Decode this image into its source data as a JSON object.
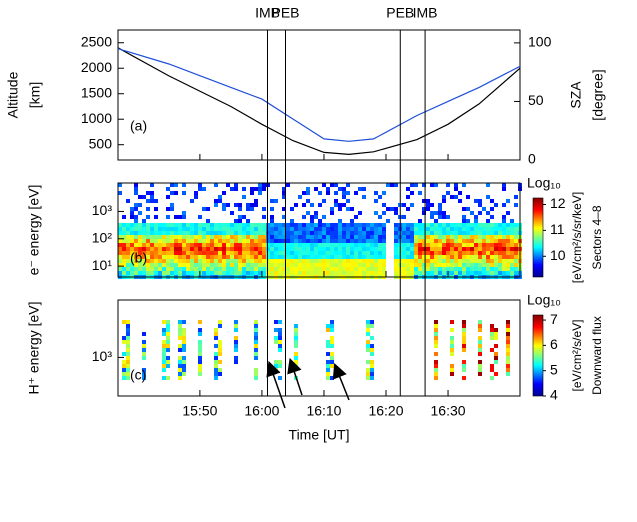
{
  "boundaries": [
    {
      "label": "IMB",
      "x": 960.9
    },
    {
      "label": "PEB",
      "x": 963.8
    },
    {
      "label": "PEB",
      "x": 982.3
    },
    {
      "label": "IMB",
      "x": 986.3
    }
  ],
  "chart_data": [
    {
      "type": "line",
      "panel_label": "(a)",
      "ylabel": [
        "Altitude",
        "[km]"
      ],
      "y2label": [
        "SZA",
        "[degree]"
      ],
      "y2color": "#1f4fd8",
      "x": [
        936.8,
        945,
        955,
        960,
        965,
        970,
        974,
        978,
        985,
        990,
        995,
        1001.6
      ],
      "series": [
        {
          "color": "#000000",
          "values": [
            2400,
            1850,
            1250,
            900,
            580,
            350,
            310,
            360,
            600,
            900,
            1300,
            2000
          ]
        },
        {
          "color": "#1f4fd8",
          "axis": "y2",
          "values": [
            95,
            82,
            62,
            52,
            35,
            18,
            16,
            18,
            38,
            50,
            62,
            80
          ]
        }
      ],
      "xlim": [
        936.8,
        1001.6
      ],
      "ylim": [
        200,
        2750
      ],
      "yticks": [
        500,
        1000,
        1500,
        2000,
        2500
      ],
      "y2lim": [
        0,
        111
      ],
      "y2ticks": [
        0,
        50,
        100
      ]
    },
    {
      "type": "spectrogram",
      "panel_label": "(b)",
      "ylabel": "e⁻ energy [eV]",
      "log_y": true,
      "xlim": [
        936.8,
        1001.6
      ],
      "ylim": [
        4,
        11000
      ],
      "yticks": [
        {
          "value": 10,
          "label": "10¹"
        },
        {
          "value": 100,
          "label": "10²"
        },
        {
          "value": 1000,
          "label": "10³"
        }
      ],
      "colorbar": {
        "title": "Log₁₀",
        "label": [
          "[eV/cm²/s/sr/keV]",
          "Sectors 4–8"
        ],
        "lim": [
          9.2,
          12.25
        ],
        "ticks": [
          10,
          11,
          12
        ]
      }
    },
    {
      "type": "spectrogram",
      "panel_label": "(c)",
      "ylabel": "H⁺ energy [eV]",
      "log_y": true,
      "xlim": [
        936.8,
        1001.6
      ],
      "ylim": [
        300,
        6000
      ],
      "yticks": [
        {
          "value": 1000,
          "label": "10³"
        }
      ],
      "xticks": [
        {
          "value": 950,
          "label": "15:50"
        },
        {
          "value": 960,
          "label": "16:00"
        },
        {
          "value": 970,
          "label": "16:10"
        },
        {
          "value": 980,
          "label": "16:20"
        },
        {
          "value": 990,
          "label": "16:30"
        }
      ],
      "xlabel": "Time [UT]",
      "colorbar": {
        "title": "Log₁₀",
        "label": [
          "[eV/cm²/s/eV]",
          "Downward flux"
        ],
        "lim": [
          4,
          7.2
        ],
        "ticks": [
          4,
          5,
          6,
          7
        ]
      }
    }
  ]
}
